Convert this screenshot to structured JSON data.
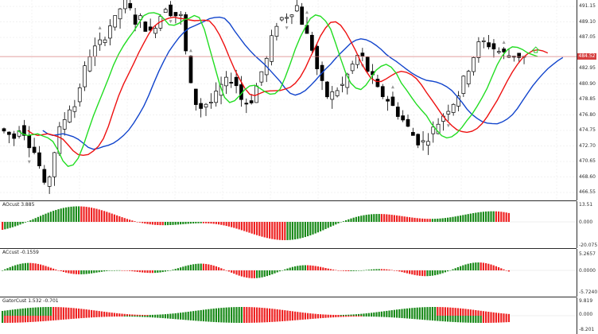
{
  "colors": {
    "up_candle": "#ffffff",
    "down_candle": "#000000",
    "candle_outline": "#000000",
    "ma_fast": "#22dd22",
    "ma_mid": "#ee1111",
    "ma_slow": "#1144cc",
    "hist_up": "#1a8a1a",
    "hist_down": "#ee2222",
    "price_line": "#d88080",
    "fractal": "#9a9a9a",
    "arrow": "#33cc33"
  },
  "main": {
    "price_badge": "484.52",
    "y_ticks": [
      "491.15",
      "489.10",
      "487.05",
      "482.95",
      "480.90",
      "478.85",
      "476.80",
      "474.75",
      "472.70",
      "470.65",
      "468.60",
      "466.55"
    ]
  },
  "ao": {
    "label": "AOcust 3.885",
    "y_ticks": [
      "13.51",
      "0.000",
      "-20.075"
    ]
  },
  "ac": {
    "label": "ACcust -0.1559",
    "y_ticks": [
      "5.2657",
      "0.0000",
      "-5.7240"
    ]
  },
  "gator": {
    "label": "GatorCust 1.532 -0.701",
    "y_ticks": [
      "9.819",
      "0.000",
      "-8.201"
    ]
  },
  "chart_data": {
    "type": "candlestick",
    "series": [
      {
        "name": "price",
        "values": [
          475,
          474.6,
          474.2,
          473.8,
          475.2,
          474.5,
          473,
          471.9,
          470,
          467.3,
          468.8,
          472,
          474.8,
          476.3,
          477.8,
          478,
          480.6,
          482.9,
          484.8,
          485.6,
          486.3,
          487.3,
          488.7,
          489.4,
          490.9,
          492,
          490.6,
          489.2,
          489.5,
          488.4,
          487.6,
          488.8,
          490,
          491.2,
          490.4,
          490,
          489.8,
          485.1,
          480.6,
          478.4,
          477.8,
          478.3,
          478.5,
          479.4,
          480.6,
          481.2,
          481.6,
          480.8,
          478.9,
          478.5,
          478.8,
          480.6,
          482.5,
          484.1,
          486.8,
          488.9,
          489.6,
          490,
          490.6,
          491.2,
          489.1,
          487.3,
          485.6,
          482.9,
          480.8,
          479.3,
          479.6,
          480.2,
          480.7,
          482.1,
          483.4,
          484.6,
          484.3,
          482.7,
          481.6,
          480.1,
          479.4,
          478.8,
          477.9,
          477,
          476.1,
          475.1,
          474.1,
          473.3,
          473.2,
          473.9,
          474.9,
          475.8,
          476.8,
          477.7,
          478.5,
          479.6,
          481.4,
          483,
          484.6,
          486.1,
          486.4,
          486.1,
          485.6,
          485.2,
          484.9,
          484.7,
          484.7,
          484.6,
          484.5
        ]
      }
    ],
    "ylim": [
      465.5,
      492
    ]
  }
}
